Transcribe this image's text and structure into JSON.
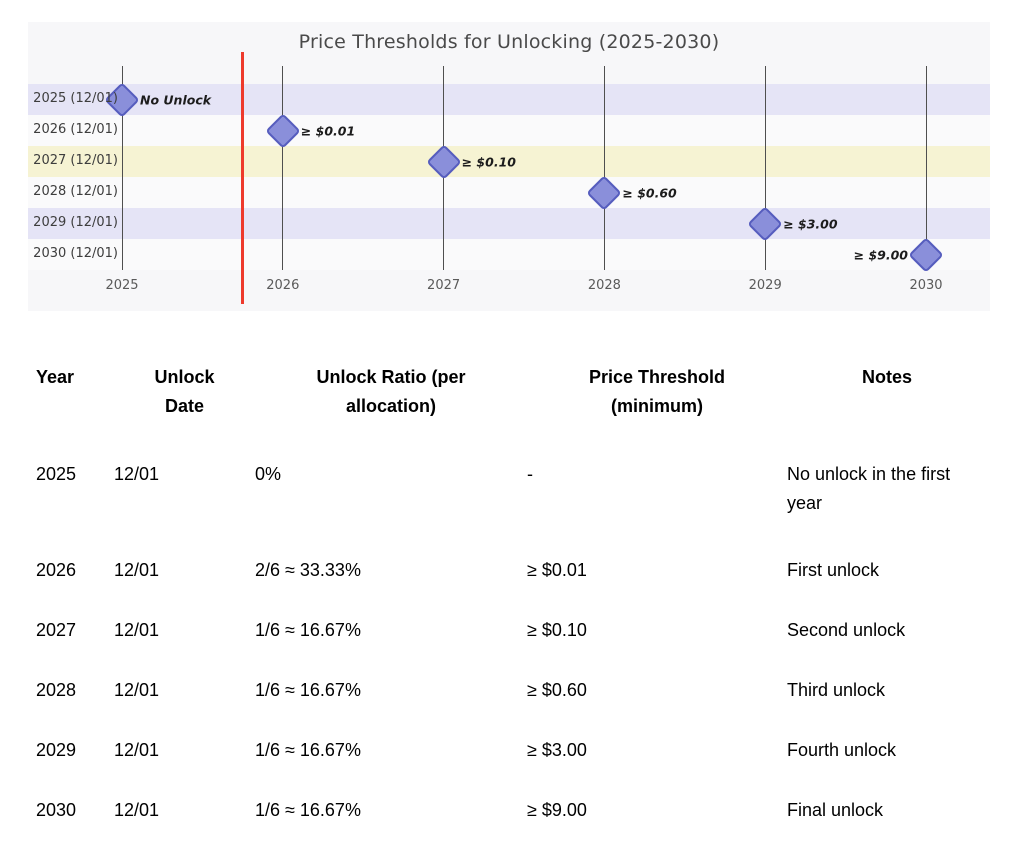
{
  "chart_data": {
    "type": "scatter",
    "title": "Price Thresholds for Unlocking (2025-2030)",
    "x_ticks": [
      "2025",
      "2026",
      "2027",
      "2028",
      "2029",
      "2030"
    ],
    "x_range": [
      2024.4,
      2030.4
    ],
    "y_labels": [
      "2025 (12/01)",
      "2026 (12/01)",
      "2027 (12/01)",
      "2028 (12/01)",
      "2029 (12/01)",
      "2030 (12/01)"
    ],
    "points": [
      {
        "x": 2025,
        "row": 0,
        "label": "No Unlock",
        "threshold": null,
        "label_side": "right"
      },
      {
        "x": 2026,
        "row": 1,
        "label": "≥ $0.01",
        "threshold": 0.01,
        "label_side": "right"
      },
      {
        "x": 2027,
        "row": 2,
        "label": "≥ $0.10",
        "threshold": 0.1,
        "label_side": "right"
      },
      {
        "x": 2028,
        "row": 3,
        "label": "≥ $0.60",
        "threshold": 0.6,
        "label_side": "right"
      },
      {
        "x": 2029,
        "row": 4,
        "label": "≥ $3.00",
        "threshold": 3.0,
        "label_side": "right"
      },
      {
        "x": 2030,
        "row": 5,
        "label": "≥ $9.00",
        "threshold": 9.0,
        "label_side": "left"
      }
    ],
    "reference_line": {
      "x": 2025.75,
      "color": "#ee3a2c"
    },
    "row_colors": [
      "#e5e4f6",
      "#fafafb",
      "#f6f3d3",
      "#fafafb",
      "#e5e4f6",
      "#fafafb"
    ],
    "marker": {
      "shape": "diamond",
      "fill": "#8a8fda",
      "stroke": "#565dbe"
    },
    "plot_bg": "#f7f7f9",
    "grid": "vertical-year-lines",
    "legend": "none"
  },
  "table": {
    "columns": [
      "Year",
      "Unlock Date",
      "Unlock Ratio (per allocation)",
      "Price Threshold (minimum)",
      "Notes"
    ],
    "rows": [
      {
        "year": "2025",
        "date": "12/01",
        "ratio": "0%",
        "threshold": "-",
        "notes": "No unlock in the first year"
      },
      {
        "year": "2026",
        "date": "12/01",
        "ratio": "2/6 ≈ 33.33%",
        "threshold": "≥ $0.01",
        "notes": "First unlock"
      },
      {
        "year": "2027",
        "date": "12/01",
        "ratio": "1/6 ≈ 16.67%",
        "threshold": "≥ $0.10",
        "notes": "Second unlock"
      },
      {
        "year": "2028",
        "date": "12/01",
        "ratio": "1/6 ≈ 16.67%",
        "threshold": "≥ $0.60",
        "notes": "Third unlock"
      },
      {
        "year": "2029",
        "date": "12/01",
        "ratio": "1/6 ≈ 16.67%",
        "threshold": "≥ $3.00",
        "notes": "Fourth unlock"
      },
      {
        "year": "2030",
        "date": "12/01",
        "ratio": "1/6 ≈ 16.67%",
        "threshold": "≥ $9.00",
        "notes": "Final unlock"
      }
    ]
  }
}
